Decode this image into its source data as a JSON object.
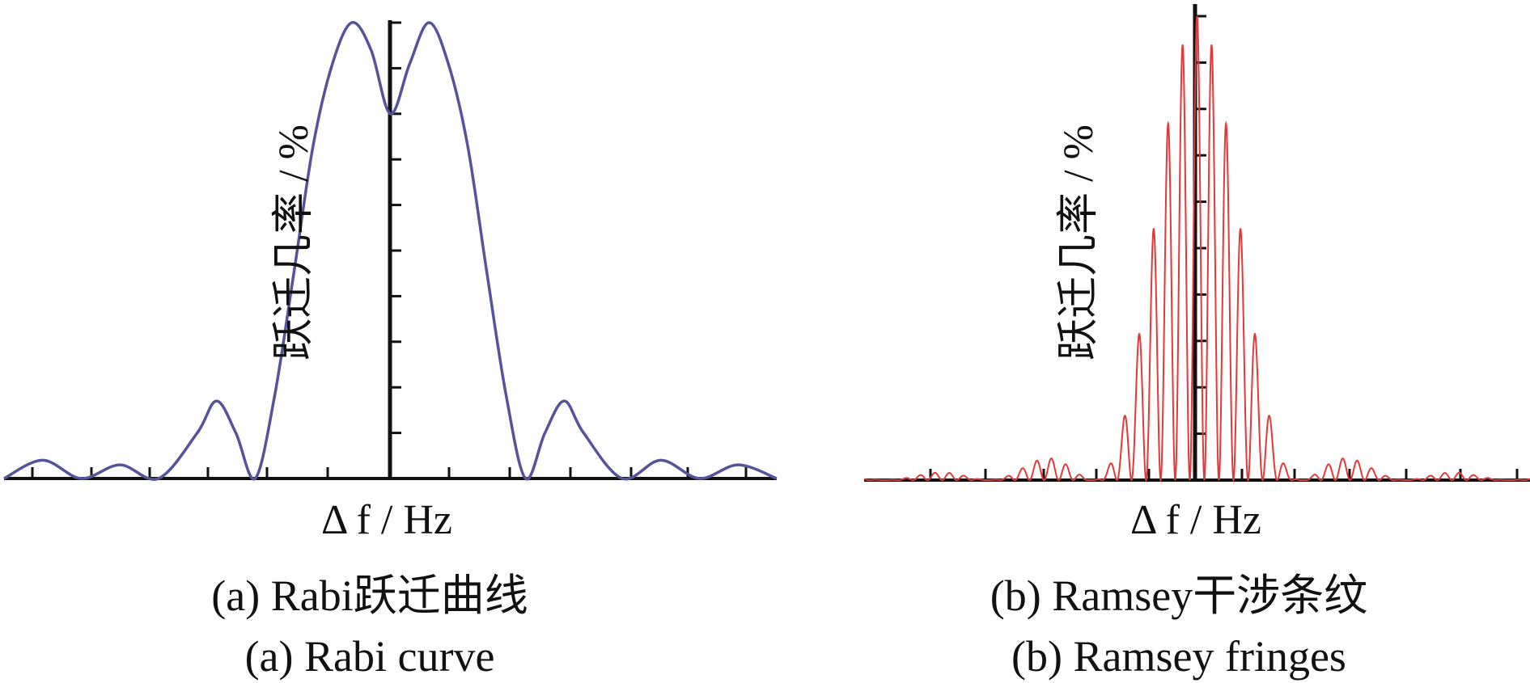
{
  "chart_data": [
    {
      "type": "line",
      "panel": "a",
      "ylabel": "跃迁几率 / %",
      "xlabel": "Δ f / Hz",
      "caption_cn": "(a) Rabi跃迁曲线",
      "caption_en": "(a) Rabi curve",
      "x_ticks_visible": true,
      "y_ticks_visible": true,
      "grid": false,
      "series_color": "#54539b",
      "x": [
        -4.0,
        -3.6,
        -3.2,
        -2.8,
        -2.4,
        -2.0,
        -1.8,
        -1.6,
        -1.4,
        -1.2,
        -1.0,
        -0.8,
        -0.6,
        -0.4,
        -0.2,
        0.0,
        0.2,
        0.4,
        0.6,
        0.8,
        1.0,
        1.2,
        1.4,
        1.6,
        1.8,
        2.0,
        2.4,
        2.8,
        3.2,
        3.6,
        4.0
      ],
      "y": [
        0,
        4,
        0,
        3,
        0,
        10,
        17,
        10,
        0,
        18,
        45,
        73,
        91,
        100,
        94,
        80,
        91,
        100,
        91,
        73,
        45,
        18,
        0,
        10,
        17,
        10,
        0,
        4,
        0,
        3,
        0
      ]
    },
    {
      "type": "line",
      "panel": "b",
      "ylabel": "跃迁几率 / %",
      "xlabel": "Δ f / Hz",
      "caption_cn": "(b) Ramsey干涉条纹",
      "caption_en": "(b) Ramsey fringes",
      "x_ticks_visible": true,
      "y_ticks_visible": true,
      "grid": false,
      "series_color": "#e03a3a",
      "x_range": [
        -3.2,
        3.2
      ],
      "envelope": "rabi",
      "envelope_width": 1.0,
      "fringe_period": 0.14,
      "peak": 100
    }
  ]
}
